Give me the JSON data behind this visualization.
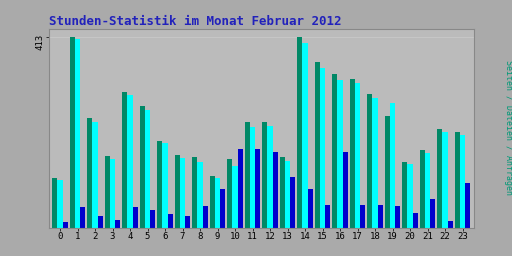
{
  "title": "Stunden-Statistik im Monat Februar 2012",
  "ylabel_right": "Seiten / Dateien / Anfragen",
  "hours": [
    0,
    1,
    2,
    3,
    4,
    5,
    6,
    7,
    8,
    9,
    10,
    11,
    12,
    13,
    14,
    15,
    16,
    17,
    18,
    19,
    20,
    21,
    22,
    23
  ],
  "seiten": [
    108,
    413,
    238,
    155,
    295,
    263,
    188,
    158,
    153,
    113,
    148,
    228,
    228,
    153,
    413,
    358,
    333,
    323,
    290,
    243,
    143,
    168,
    213,
    208
  ],
  "dateien": [
    103,
    408,
    230,
    148,
    287,
    255,
    183,
    152,
    143,
    108,
    133,
    218,
    220,
    145,
    400,
    345,
    320,
    313,
    280,
    270,
    138,
    162,
    207,
    202
  ],
  "anfragen": [
    12,
    45,
    25,
    18,
    45,
    38,
    30,
    25,
    48,
    85,
    170,
    170,
    165,
    110,
    85,
    50,
    165,
    50,
    50,
    48,
    32,
    62,
    15,
    98
  ],
  "color_seiten": "#008866",
  "color_dateien": "#00FFFF",
  "color_anfragen": "#0000CC",
  "ylim_max": 430,
  "ytick": 413,
  "fig_bg": "#AAAAAA",
  "ax_bg": "#BBBBBB",
  "title_color": "#2222BB",
  "ylabel_color": "#009977",
  "bar_width": 0.3,
  "grid_color": "#CCCCCC"
}
